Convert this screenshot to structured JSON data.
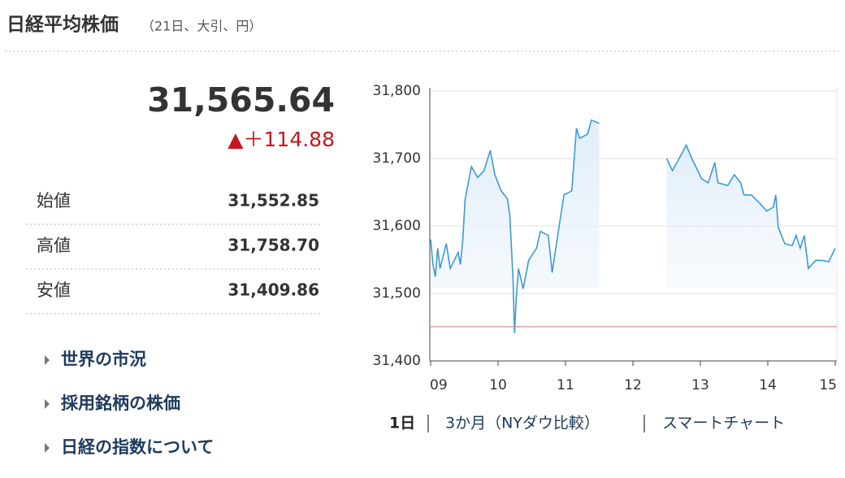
{
  "header": {
    "title": "日経平均株価",
    "subtitle": "（21日、大引、円）"
  },
  "quote": {
    "price": "31,565.64",
    "change": "▲＋114.88"
  },
  "stats": [
    {
      "label": "始値",
      "value": "31,552.85"
    },
    {
      "label": "高値",
      "value": "31,758.70"
    },
    {
      "label": "安値",
      "value": "31,409.86"
    }
  ],
  "links": [
    "世界の市況",
    "採用銘柄の株価",
    "日経の指数について"
  ],
  "tabs": [
    "1日",
    "3か月（NYダウ比較）",
    "スマートチャート"
  ],
  "chart_data": {
    "type": "line",
    "xlim": [
      9,
      15
    ],
    "xticks": [
      {
        "value": 9,
        "label": "09"
      },
      10,
      11,
      12,
      13,
      14,
      15
    ],
    "ylim": [
      31400,
      31800
    ],
    "yticks": [
      {
        "value": 31400,
        "label": "31,400"
      },
      {
        "value": 31500,
        "label": "31,500"
      },
      {
        "value": 31600,
        "label": "31,600"
      },
      {
        "value": 31700,
        "label": "31,700"
      },
      {
        "value": 31800,
        "label": "31,800"
      }
    ],
    "grid": true,
    "reference_line": 31450.76,
    "reference_color": "#e08a8a",
    "series": [
      {
        "color": "#3d9ad6",
        "x": [
          9.0,
          9.035,
          9.07,
          9.105,
          9.14,
          9.233,
          9.291,
          9.407,
          9.442,
          9.477,
          9.512,
          9.605,
          9.698,
          9.791,
          9.884,
          9.953,
          10.047,
          10.14,
          10.174,
          10.221,
          10.244,
          10.267,
          10.302,
          10.372,
          10.453,
          10.57,
          10.628,
          10.744,
          10.802,
          10.884,
          10.977,
          11.093,
          11.163,
          11.209,
          11.326,
          11.384,
          11.5
        ],
        "values": [
          31580,
          31543,
          31525,
          31567,
          31537,
          31574,
          31537,
          31561,
          31543,
          31580,
          31640,
          31688,
          31672,
          31682,
          31712,
          31676,
          31652,
          31640,
          31616,
          31525,
          31441,
          31489,
          31537,
          31507,
          31549,
          31567,
          31592,
          31586,
          31531,
          31586,
          31646,
          31652,
          31745,
          31730,
          31736,
          31757,
          31752
        ]
      },
      {
        "color": "#3d9ad6",
        "x": [
          12.5,
          12.585,
          12.729,
          12.79,
          12.874,
          13.019,
          13.116,
          13.213,
          13.261,
          13.406,
          13.502,
          13.599,
          13.647,
          13.756,
          13.877,
          13.986,
          14.082,
          14.118,
          14.155,
          14.251,
          14.36,
          14.42,
          14.481,
          14.541,
          14.601,
          14.71,
          14.807,
          14.903,
          15.0
        ],
        "values": [
          31700,
          31682,
          31708,
          31720,
          31700,
          31670,
          31664,
          31694,
          31664,
          31660,
          31676,
          31664,
          31646,
          31646,
          31634,
          31622,
          31628,
          31646,
          31598,
          31574,
          31571,
          31586,
          31567,
          31586,
          31537,
          31549,
          31549,
          31547,
          31567
        ]
      }
    ]
  }
}
